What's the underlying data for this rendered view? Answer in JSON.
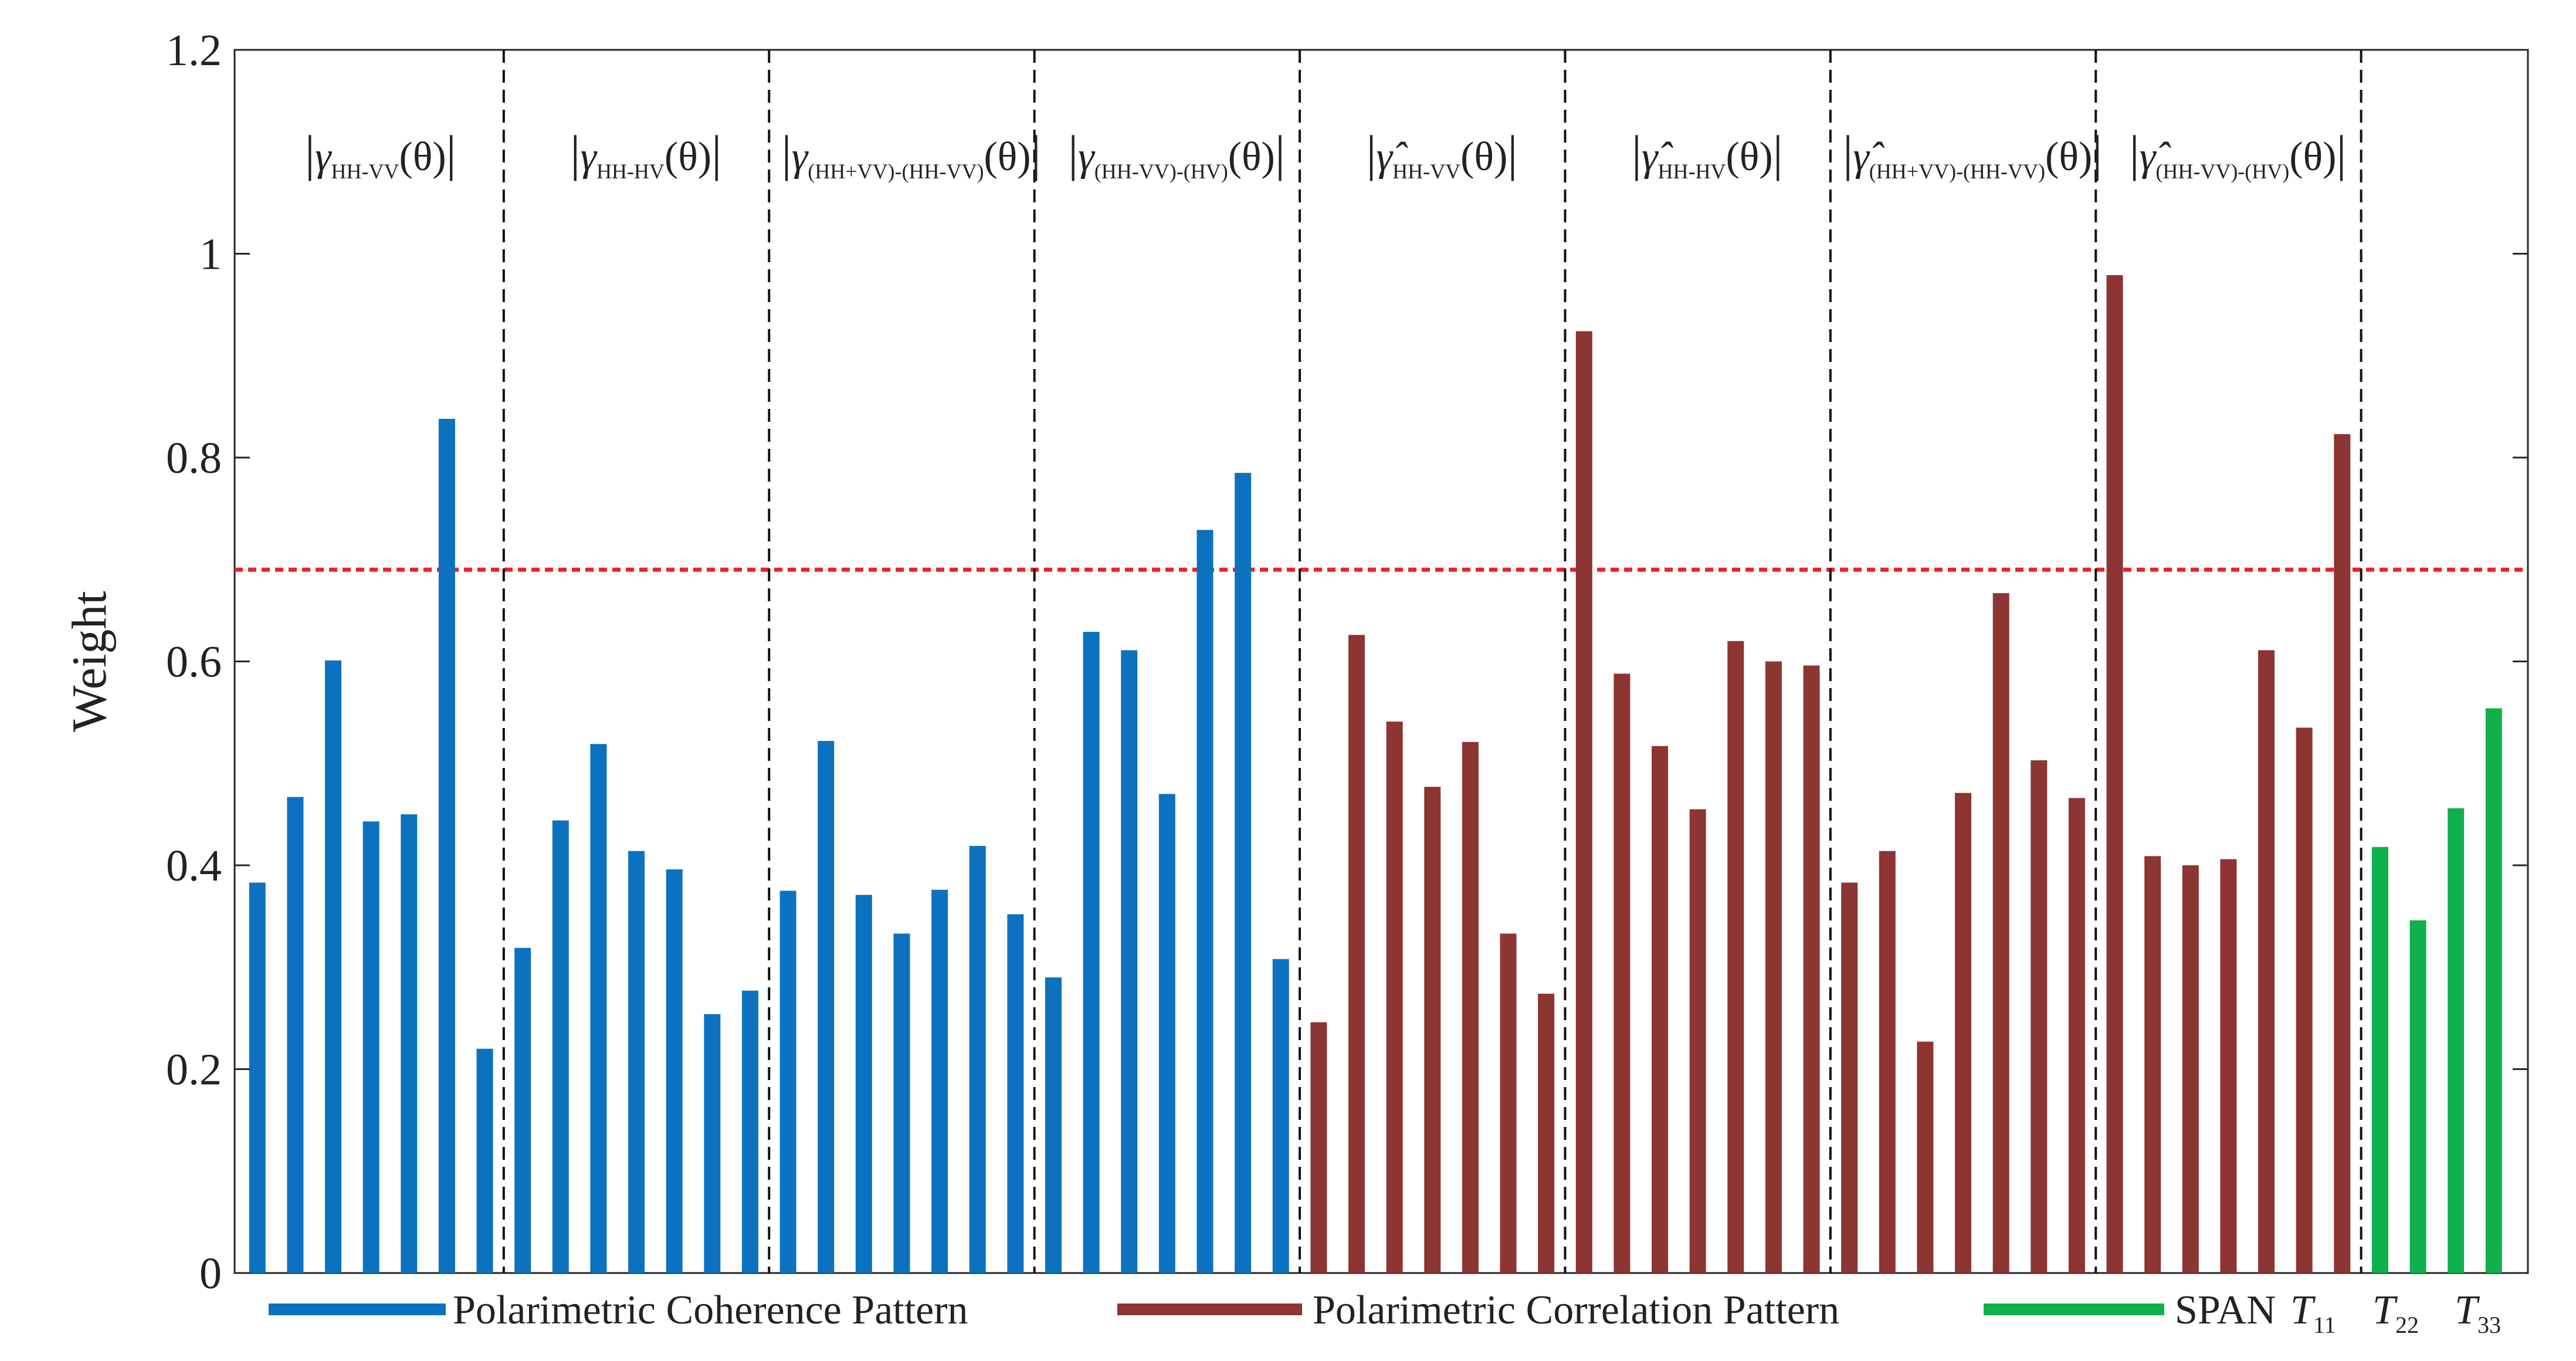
{
  "chart_data": {
    "type": "bar",
    "ylabel": "Weight",
    "xlabel": "",
    "title": "",
    "ylim": [
      0,
      1.2
    ],
    "yticks": [
      {
        "value": 0,
        "label": "0"
      },
      {
        "value": 0.2,
        "label": "0.2"
      },
      {
        "value": 0.4,
        "label": "0.4"
      },
      {
        "value": 0.6,
        "label": "0.6"
      },
      {
        "value": 0.8,
        "label": "0.8"
      },
      {
        "value": 1.0,
        "label": "1"
      },
      {
        "value": 1.2,
        "label": "1.2"
      }
    ],
    "threshold": 0.69,
    "threshold_color": "#e8232a",
    "groups": [
      {
        "symbol": "γ",
        "hat": false,
        "subscript": "HH-VV",
        "arg": "(θ)",
        "series": "coherence",
        "values": [
          0.383,
          0.467,
          0.601,
          0.443,
          0.45,
          0.838,
          0.22
        ]
      },
      {
        "symbol": "γ",
        "hat": false,
        "subscript": "HH-HV",
        "arg": "(θ)",
        "series": "coherence",
        "values": [
          0.319,
          0.444,
          0.519,
          0.414,
          0.396,
          0.254,
          0.277
        ]
      },
      {
        "symbol": "γ",
        "hat": false,
        "subscript": "(HH+VV)-(HH-VV)",
        "arg": "(θ)",
        "series": "coherence",
        "values": [
          0.375,
          0.522,
          0.371,
          0.333,
          0.376,
          0.419,
          0.352
        ]
      },
      {
        "symbol": "γ",
        "hat": false,
        "subscript": "(HH-VV)-(HV)",
        "arg": "(θ)",
        "series": "coherence",
        "values": [
          0.29,
          0.629,
          0.611,
          0.47,
          0.729,
          0.785,
          0.308
        ]
      },
      {
        "symbol": "γ̂",
        "hat": true,
        "subscript": "HH-VV",
        "arg": "(θ)",
        "series": "correlation",
        "values": [
          0.246,
          0.626,
          0.541,
          0.477,
          0.521,
          0.333,
          0.274
        ]
      },
      {
        "symbol": "γ̂",
        "hat": true,
        "subscript": "HH-HV",
        "arg": "(θ)",
        "series": "correlation",
        "values": [
          0.924,
          0.588,
          0.517,
          0.455,
          0.62,
          0.6,
          0.596
        ]
      },
      {
        "symbol": "γ̂",
        "hat": true,
        "subscript": "(HH+VV)-(HH-VV)",
        "arg": "(θ)",
        "series": "correlation",
        "values": [
          0.383,
          0.414,
          0.227,
          0.471,
          0.667,
          0.503,
          0.466
        ]
      },
      {
        "symbol": "γ̂",
        "hat": true,
        "subscript": "(HH-VV)-(HV)",
        "arg": "(θ)",
        "series": "correlation",
        "values": [
          0.979,
          0.409,
          0.4,
          0.406,
          0.611,
          0.535,
          0.823
        ]
      },
      {
        "symbol": "",
        "hat": false,
        "subscript": "",
        "arg": "",
        "series": "span",
        "values": [
          0.418,
          0.346,
          0.456,
          0.554
        ]
      }
    ],
    "series": [
      {
        "key": "coherence",
        "name": "Polarimetric Coherence Pattern",
        "color": "#0c72c0"
      },
      {
        "key": "correlation",
        "name": "Polarimetric Correlation Pattern",
        "color": "#8c3533"
      },
      {
        "key": "span",
        "name": "SPAN",
        "color": "#10b04c"
      }
    ],
    "legend_extra": [
      {
        "symbol": "T",
        "subscript": "11"
      },
      {
        "symbol": "T",
        "subscript": "22"
      },
      {
        "symbol": "T",
        "subscript": "33"
      }
    ],
    "legend_position": "bottom"
  }
}
